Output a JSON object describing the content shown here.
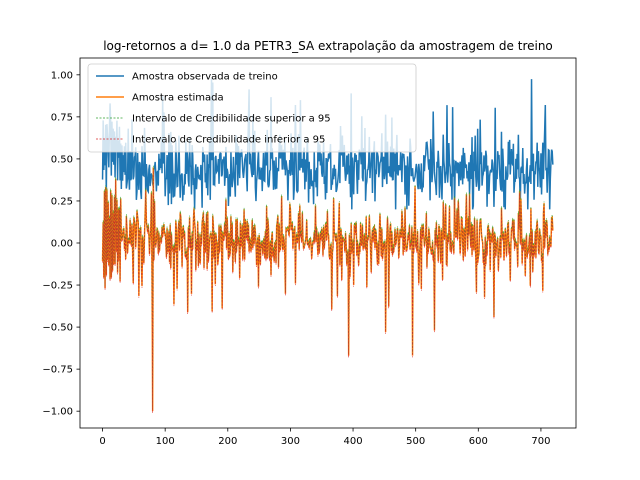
{
  "chart_data": {
    "type": "line",
    "title": "log-retornos a d=  1.0 da PETR3_SA extrapolação da amostragem de treino",
    "xlabel": "",
    "ylabel": "",
    "xlim": [
      -36,
      756
    ],
    "ylim": [
      -1.1,
      1.1
    ],
    "x_ticks": [
      0,
      100,
      200,
      300,
      400,
      500,
      600,
      700
    ],
    "y_ticks": [
      -1.0,
      -0.75,
      -0.5,
      -0.25,
      0.0,
      0.25,
      0.5,
      0.75,
      1.0
    ],
    "x_tick_labels": [
      "0",
      "100",
      "200",
      "300",
      "400",
      "500",
      "600",
      "700"
    ],
    "y_tick_labels": [
      "−1.00",
      "−0.75",
      "−0.50",
      "−0.25",
      "0.00",
      "0.25",
      "0.50",
      "0.75",
      "1.00"
    ],
    "grid": false,
    "legend_position": "top-left",
    "n_points": 720,
    "series": [
      {
        "name": "Amostra observada de treino",
        "color": "#1f77b4",
        "style": "solid",
        "summary": {
          "baseline": 0.43,
          "spread": 0.1,
          "min": 0.2,
          "max": 1.0
        }
      },
      {
        "name": "Amostra estimada",
        "color": "#ff7f0e",
        "style": "solid",
        "summary": {
          "baseline": 0.02,
          "spread": 0.08,
          "min": -1.0,
          "max": 0.6
        }
      },
      {
        "name": "Intervalo de Credibilidade superior a 95",
        "color": "#2ca02c",
        "style": "dashed"
      },
      {
        "name": "Intervalo de Credibilidade inferior a 95",
        "color": "#d62728",
        "style": "dashed"
      }
    ],
    "notable_points": [
      {
        "x": 80,
        "y_estimate": -1.0,
        "y_observed": 0.35
      },
      {
        "x": 393,
        "y_estimate": -0.67
      },
      {
        "x": 452,
        "y_estimate": -0.53
      },
      {
        "x": 495,
        "y_estimate": -0.67
      },
      {
        "x": 530,
        "y_estimate": -0.52
      },
      {
        "x": 625,
        "y_estimate": -0.44
      },
      {
        "x": 12,
        "y_observed": 0.83
      },
      {
        "x": 550,
        "y_observed": 0.82
      }
    ]
  }
}
